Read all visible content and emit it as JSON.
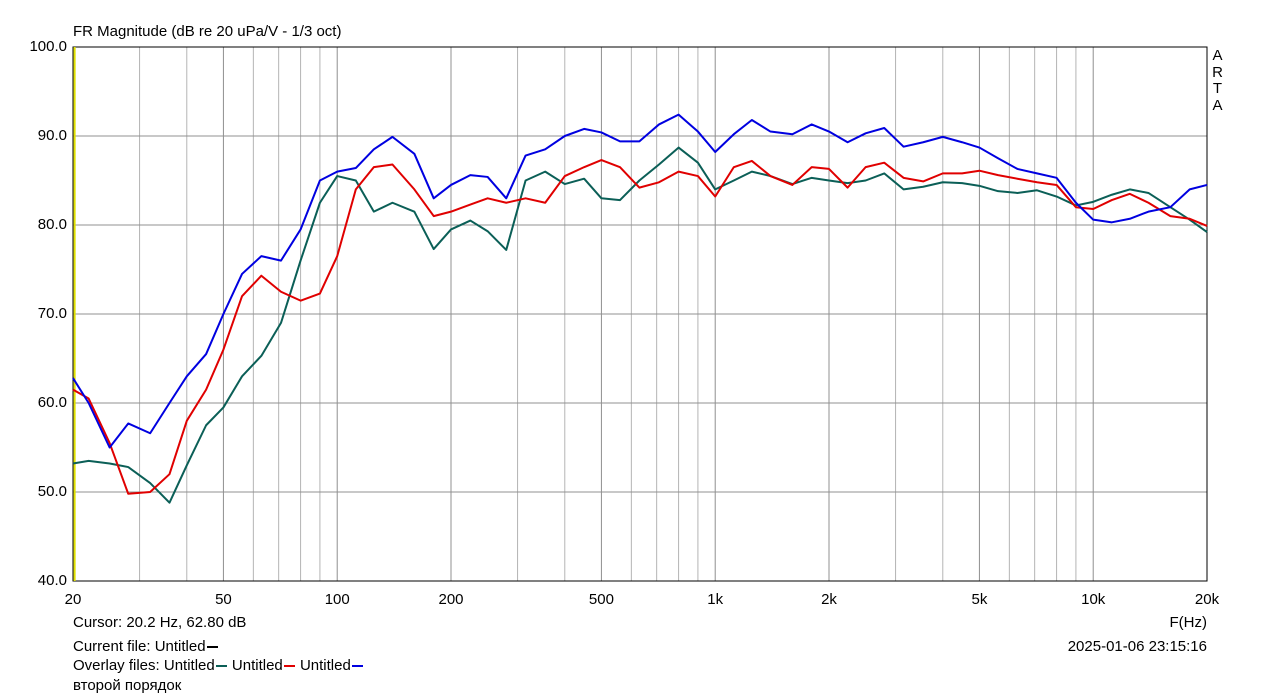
{
  "chart_data": {
    "type": "line",
    "title": "FR Magnitude (dB re 20 uPa/V - 1/3 oct)",
    "side_label": "ARTA",
    "x_label": "F(Hz)",
    "log_x": true,
    "grid": true,
    "xlim": [
      20,
      20000
    ],
    "xticks": [
      20,
      50,
      100,
      200,
      500,
      {
        "value": 1000,
        "label": "1k"
      },
      {
        "value": 2000,
        "label": "2k"
      },
      {
        "value": 5000,
        "label": "5k"
      },
      {
        "value": 10000,
        "label": "10k"
      },
      {
        "value": 20000,
        "label": "20k"
      }
    ],
    "x_minor_grid": [
      30,
      40,
      60,
      70,
      80,
      90,
      300,
      400,
      600,
      700,
      800,
      900,
      3000,
      4000,
      6000,
      7000,
      8000,
      9000
    ],
    "ylim": [
      40,
      100
    ],
    "yticks": [
      {
        "value": 40,
        "label": "40.0"
      },
      {
        "value": 50,
        "label": "50.0"
      },
      {
        "value": 60,
        "label": "60.0"
      },
      {
        "value": 70,
        "label": "70.0"
      },
      {
        "value": 80,
        "label": "80.0"
      },
      {
        "value": 90,
        "label": "90.0"
      },
      {
        "value": 100,
        "label": "100.0"
      }
    ],
    "cursor": {
      "x": 20.2,
      "y": 62.8,
      "color": "#e0e000",
      "label": "Cursor: 20.2 Hz, 62.80 dB"
    },
    "current_file": {
      "label": "Current file:",
      "name": "Untitled",
      "color": "#000000"
    },
    "overlay_label": "Overlay files:",
    "timestamp": "2025-01-06  23:15:16",
    "note": "второй порядок",
    "x": [
      20,
      22,
      25,
      28,
      32,
      36,
      40,
      45,
      50,
      56,
      63,
      71,
      80,
      90,
      100,
      112,
      125,
      140,
      160,
      180,
      200,
      225,
      250,
      280,
      315,
      355,
      400,
      450,
      500,
      560,
      630,
      710,
      800,
      900,
      1000,
      1120,
      1250,
      1400,
      1600,
      1800,
      2000,
      2240,
      2500,
      2800,
      3150,
      3550,
      4000,
      4500,
      5000,
      5600,
      6300,
      7100,
      8000,
      9000,
      10000,
      11200,
      12500,
      14000,
      16000,
      18000,
      20000
    ],
    "series": [
      {
        "name": "Untitled",
        "color": "#0b5f57",
        "values": [
          53.2,
          53.5,
          53.2,
          52.8,
          51,
          48.8,
          53,
          57.5,
          59.5,
          63,
          65.3,
          69,
          76,
          82.5,
          85.5,
          85,
          81.5,
          82.5,
          81.5,
          77.3,
          79.5,
          80.5,
          79.3,
          77.2,
          85,
          86,
          84.6,
          85.2,
          83,
          82.8,
          85,
          86.8,
          88.7,
          87,
          84,
          85,
          86,
          85.5,
          84.6,
          85.3,
          85,
          84.7,
          85,
          85.8,
          84,
          84.3,
          84.8,
          84.7,
          84.4,
          83.8,
          83.6,
          83.9,
          83.2,
          82.2,
          82.6,
          83.4,
          84,
          83.6,
          82,
          80.6,
          79.2
        ]
      },
      {
        "name": "Untitled",
        "color": "#e00000",
        "values": [
          61.5,
          60.5,
          55.5,
          49.8,
          50,
          52,
          58,
          61.5,
          66,
          72,
          74.3,
          72.5,
          71.5,
          72.3,
          76.5,
          84,
          86.5,
          86.8,
          84,
          81,
          81.5,
          82.3,
          83,
          82.5,
          83,
          82.5,
          85.5,
          86.5,
          87.3,
          86.5,
          84.2,
          84.8,
          86,
          85.5,
          83.2,
          86.5,
          87.2,
          85.5,
          84.5,
          86.5,
          86.3,
          84.2,
          86.5,
          87,
          85.3,
          84.9,
          85.8,
          85.8,
          86.1,
          85.6,
          85.2,
          84.8,
          84.5,
          82,
          81.8,
          82.8,
          83.5,
          82.5,
          81,
          80.7,
          79.9
        ]
      },
      {
        "name": "Untitled",
        "color": "#0000e0",
        "values": [
          62.8,
          60,
          55,
          57.7,
          56.6,
          60,
          63,
          65.5,
          70,
          74.5,
          76.5,
          76,
          79.5,
          85,
          86,
          86.4,
          88.5,
          89.9,
          88,
          83,
          84.5,
          85.6,
          85.4,
          83,
          87.8,
          88.5,
          90,
          90.8,
          90.4,
          89.4,
          89.4,
          91.3,
          92.4,
          90.5,
          88.2,
          90.2,
          91.8,
          90.5,
          90.2,
          91.3,
          90.5,
          89.3,
          90.3,
          90.9,
          88.8,
          89.3,
          89.9,
          89.3,
          88.7,
          87.5,
          86.3,
          85.8,
          85.3,
          82.5,
          80.6,
          80.3,
          80.7,
          81.5,
          82,
          84,
          84.5
        ]
      }
    ]
  }
}
